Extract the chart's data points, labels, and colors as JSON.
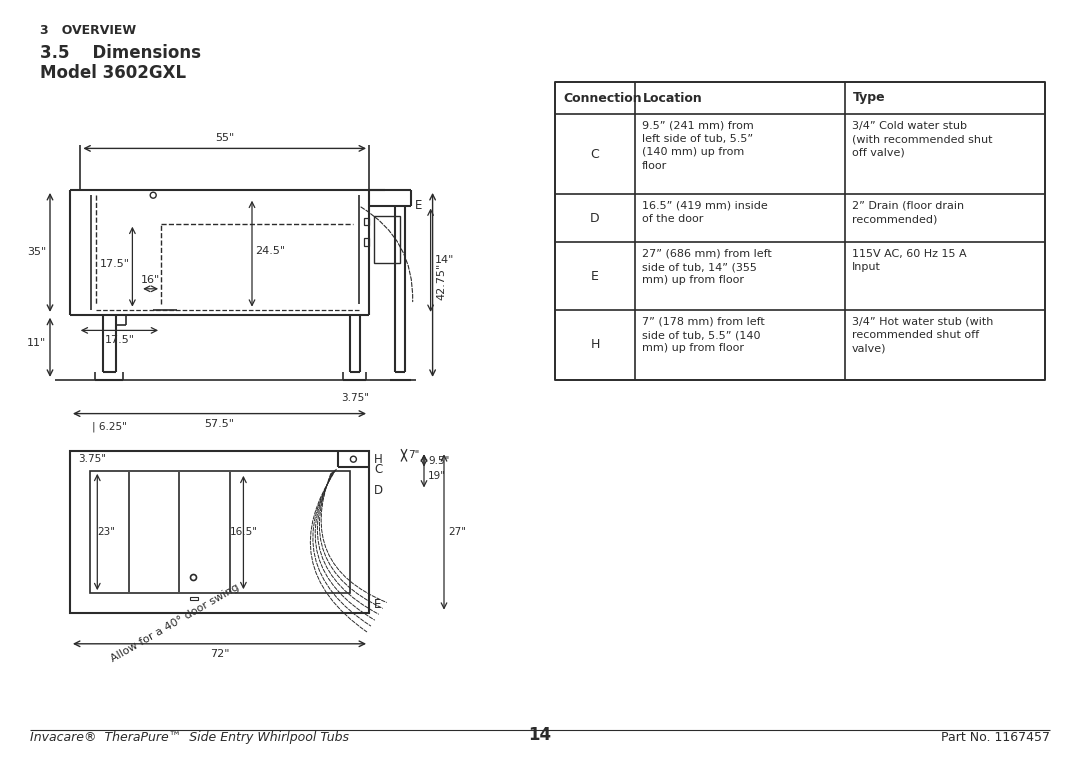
{
  "page_title_small": "3   OVERVIEW",
  "section_title": "3.5    Dimensions",
  "model_title": "Model 3602GXL",
  "footer_left": "Invacare®  TheraPure™  Side Entry Whirlpool Tubs",
  "footer_center": "14",
  "footer_right": "Part No. 1167457",
  "table_headers": [
    "Connection",
    "Location",
    "Type"
  ],
  "table_rows": [
    [
      "C",
      "9.5” (241 mm) from\nleft side of tub, 5.5”\n(140 mm) up from\nfloor",
      "3/4” Cold water stub\n(with recommended shut\noff valve)"
    ],
    [
      "D",
      "16.5” (419 mm) inside\nof the door",
      "2” Drain (floor drain\nrecommended)"
    ],
    [
      "E",
      "27” (686 mm) from left\nside of tub, 14” (355\nmm) up from floor",
      "115V AC, 60 Hz 15 A\nInput"
    ],
    [
      "H",
      "7” (178 mm) from left\nside of tub, 5.5” (140\nmm) up from floor",
      "3/4” Hot water stub (with\nrecommended shut off\nvalve)"
    ]
  ],
  "bg_color": "#ffffff",
  "line_color": "#2b2b2b",
  "text_color": "#2b2b2b"
}
